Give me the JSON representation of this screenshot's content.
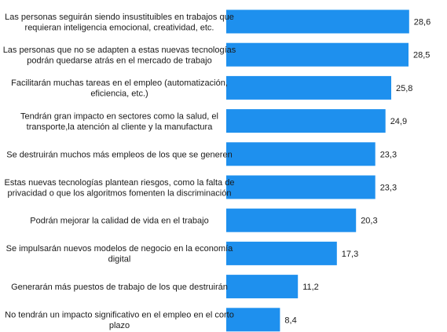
{
  "chart_data": {
    "type": "bar",
    "orientation": "horizontal",
    "title": "",
    "xlabel": "",
    "ylabel": "",
    "xlim": [
      0,
      30
    ],
    "grid": false,
    "legend": "none",
    "bar_color": "#1E90EE",
    "categories": [
      [
        "Las personas seguirán siendo insustituibles en trabajos que",
        "requieran inteligencia emocional, creatividad, etc."
      ],
      [
        "Las personas que no se adapten a estas nuevas tecnologías",
        "podrán quedarse atrás en el mercado de trabajo"
      ],
      [
        "Facilitarán muchas tareas en el empleo (automatización,",
        "eficiencia, etc.)"
      ],
      [
        "Tendrán gran impacto en sectores como la salud, el",
        "transporte,la atención al cliente y la manufactura"
      ],
      [
        "Se destruirán muchos más empleos de los que se generen"
      ],
      [
        "Estas nuevas tecnologías plantean riesgos, como la falta de",
        "privacidad o que los algoritmos fomenten la discriminación"
      ],
      [
        "Podrán mejorar la calidad de vida en el trabajo"
      ],
      [
        "Se impulsarán nuevos modelos de negocio en la economía",
        "digital"
      ],
      [
        "Generarán más puestos de trabajo de los que destruirán"
      ],
      [
        "No tendrán un impacto significativo en el empleo en el corto",
        "plazo"
      ]
    ],
    "values": [
      28.6,
      28.5,
      25.8,
      24.9,
      23.3,
      23.3,
      20.3,
      17.3,
      11.2,
      8.4
    ],
    "value_labels": [
      "28,6",
      "28,5",
      "25,8",
      "24,9",
      "23,3",
      "23,3",
      "20,3",
      "17,3",
      "11,2",
      "8,4"
    ]
  }
}
